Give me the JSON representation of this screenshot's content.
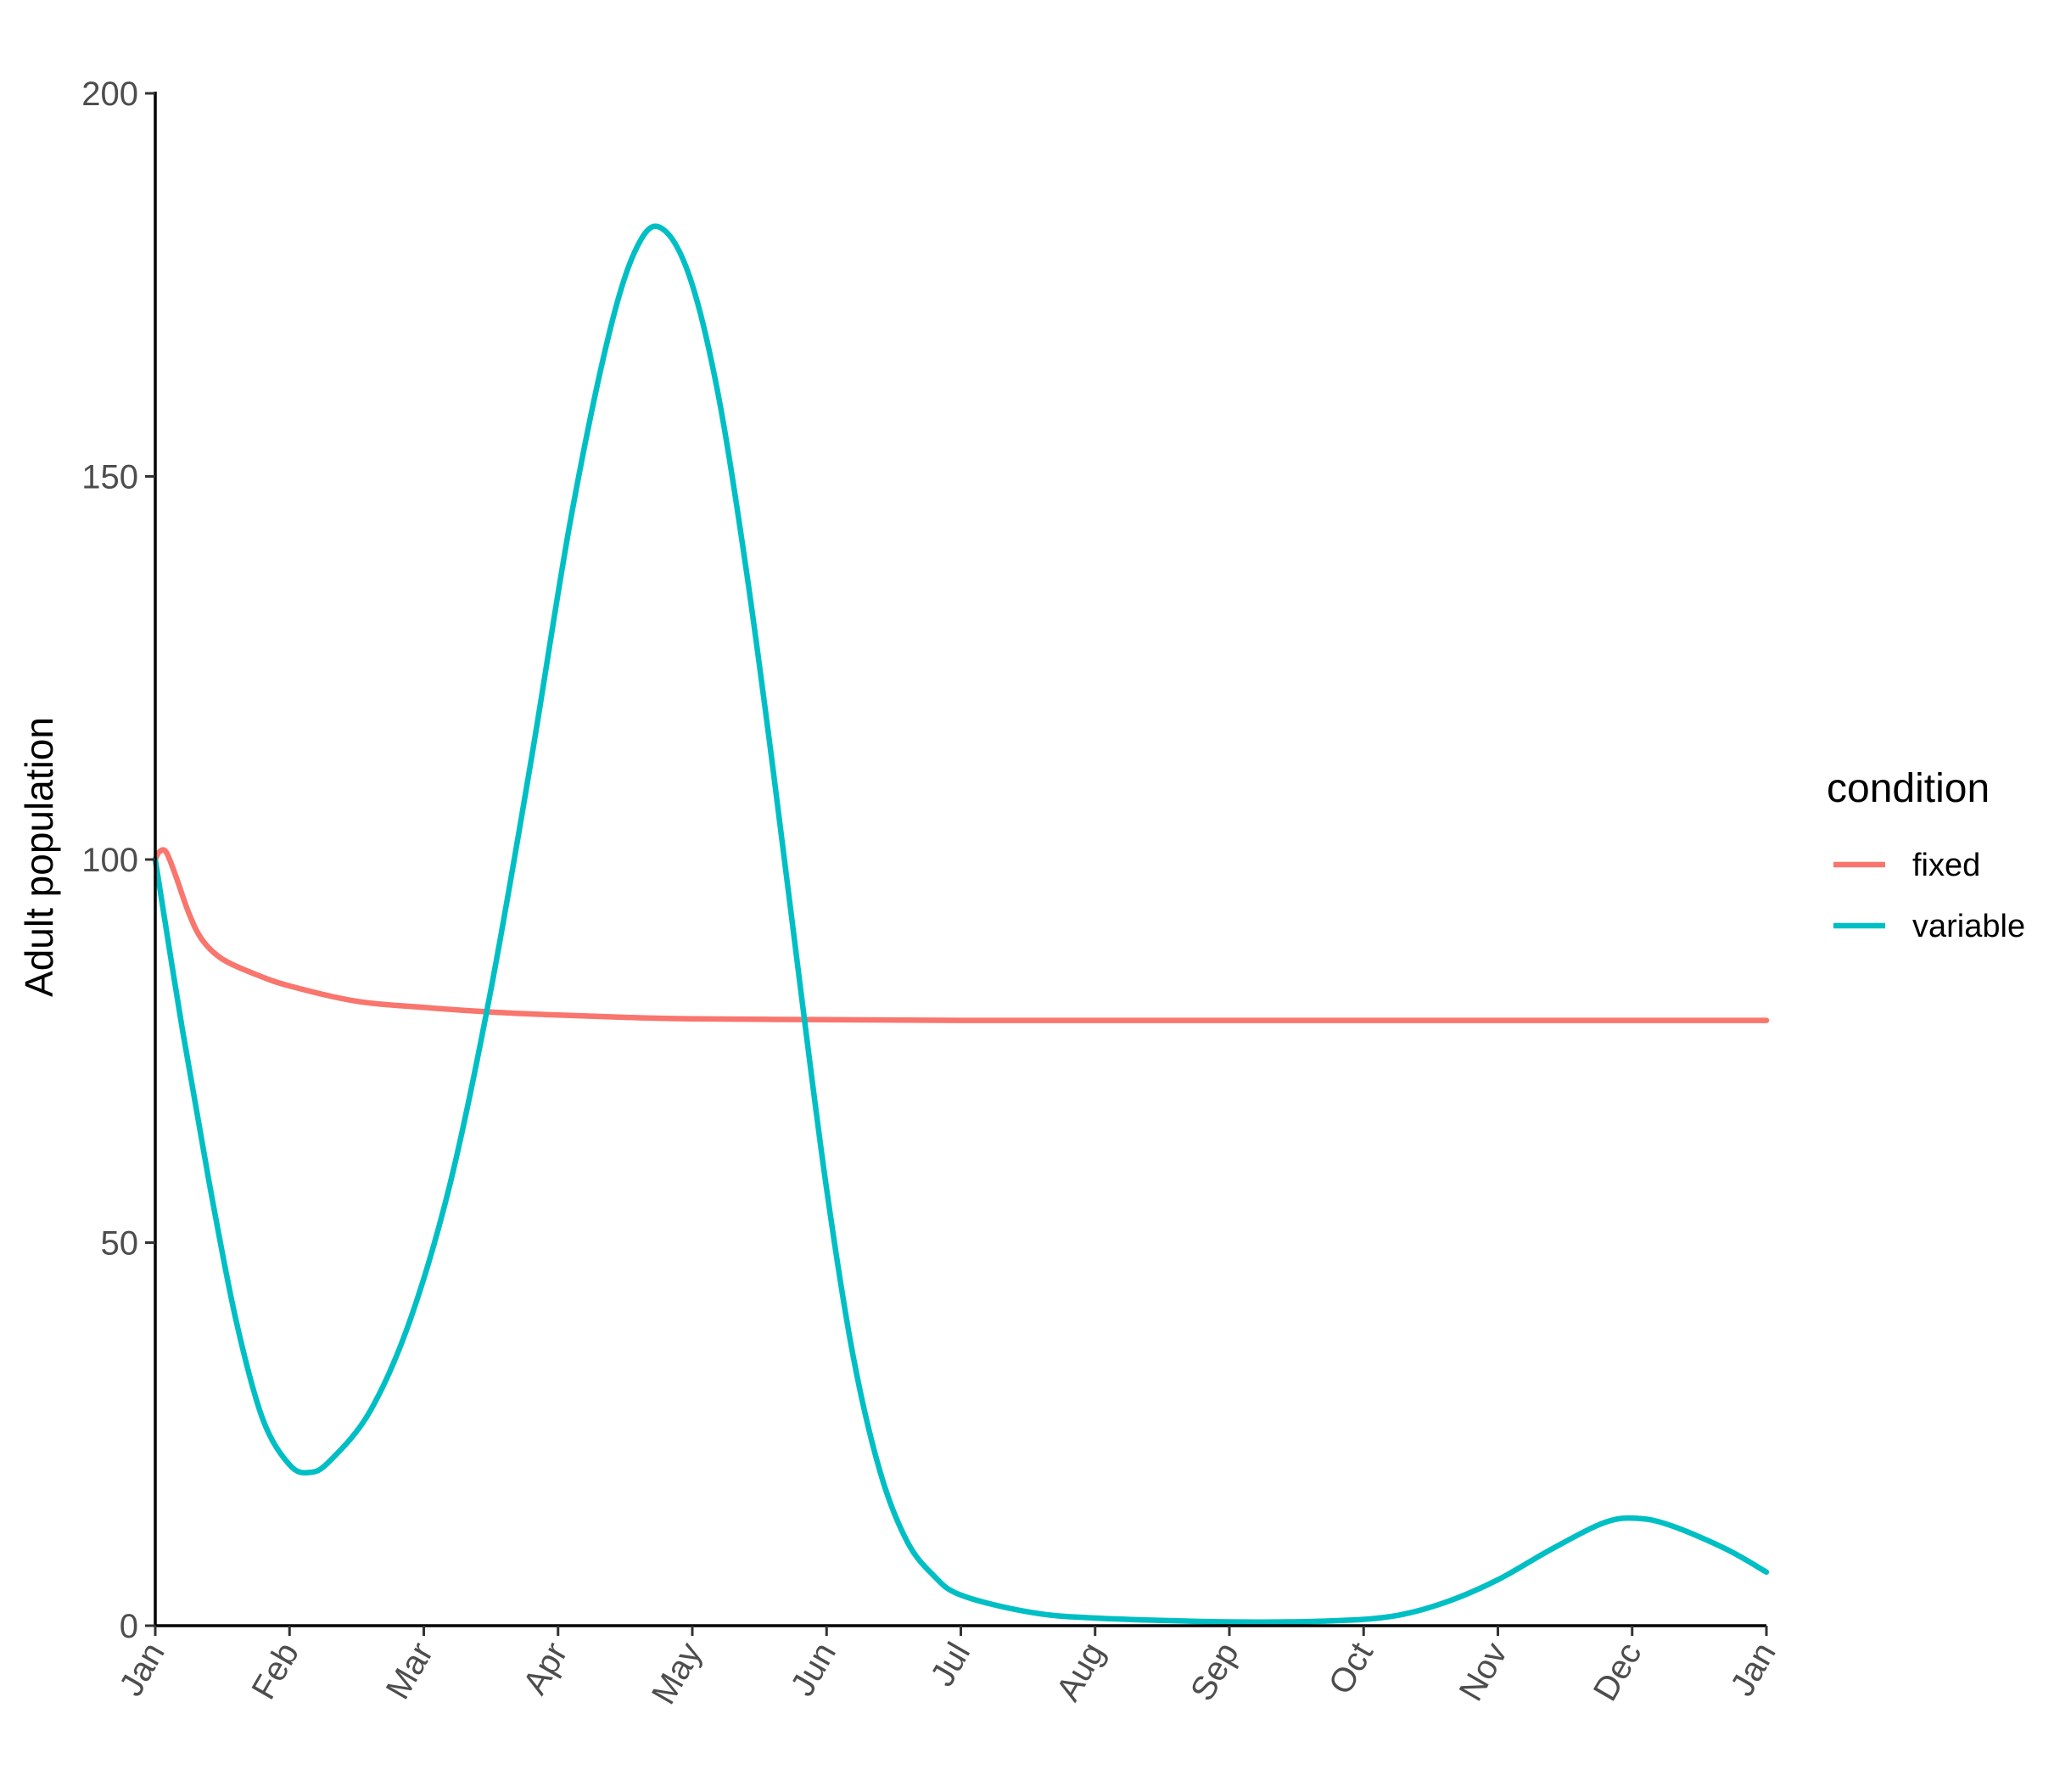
{
  "chart_data": {
    "type": "line",
    "title": "",
    "xlabel": "",
    "ylabel": "Adult population",
    "x_ticks": [
      "Jan",
      "Feb",
      "Mar",
      "Apr",
      "May",
      "Jun",
      "Jul",
      "Aug",
      "Sep",
      "Oct",
      "Nov",
      "Dec",
      "Jan"
    ],
    "xlim": [
      0,
      12
    ],
    "y_ticks": [
      "0",
      "50",
      "100",
      "150",
      "200"
    ],
    "ylim": [
      0,
      200
    ],
    "grid": false,
    "legend": {
      "title": "condition",
      "position": "right"
    },
    "series": [
      {
        "name": "fixed",
        "color": "#F8766D",
        "points": [
          [
            0,
            100
          ],
          [
            0.03,
            101
          ],
          [
            0.08,
            101
          ],
          [
            0.15,
            98
          ],
          [
            0.25,
            93
          ],
          [
            0.35,
            89.5
          ],
          [
            0.5,
            87
          ],
          [
            0.75,
            85
          ],
          [
            1,
            83.5
          ],
          [
            1.5,
            81.5
          ],
          [
            2,
            80.7
          ],
          [
            2.5,
            80.1
          ],
          [
            3,
            79.7
          ],
          [
            3.5,
            79.4
          ],
          [
            4,
            79.2
          ],
          [
            5,
            79.1
          ],
          [
            6,
            79
          ],
          [
            8,
            79
          ],
          [
            10,
            79
          ],
          [
            12,
            79
          ]
        ]
      },
      {
        "name": "variable",
        "color": "#00BFC4",
        "points": [
          [
            0,
            100
          ],
          [
            0.2,
            78
          ],
          [
            0.4,
            58
          ],
          [
            0.6,
            40
          ],
          [
            0.8,
            27
          ],
          [
            1,
            21
          ],
          [
            1.15,
            20
          ],
          [
            1.3,
            21.5
          ],
          [
            1.6,
            28
          ],
          [
            1.9,
            40
          ],
          [
            2.2,
            58
          ],
          [
            2.5,
            83
          ],
          [
            2.8,
            113
          ],
          [
            3.1,
            145
          ],
          [
            3.4,
            170
          ],
          [
            3.62,
            181
          ],
          [
            3.8,
            182
          ],
          [
            4.0,
            175
          ],
          [
            4.2,
            160
          ],
          [
            4.4,
            138
          ],
          [
            4.6,
            112
          ],
          [
            4.8,
            84
          ],
          [
            5.0,
            57
          ],
          [
            5.2,
            35
          ],
          [
            5.4,
            20
          ],
          [
            5.6,
            11
          ],
          [
            5.8,
            6.5
          ],
          [
            6.0,
            4
          ],
          [
            6.5,
            1.8
          ],
          [
            7,
            1
          ],
          [
            8,
            0.5
          ],
          [
            8.7,
            0.6
          ],
          [
            9.2,
            1.2
          ],
          [
            9.6,
            3
          ],
          [
            10,
            6
          ],
          [
            10.4,
            10
          ],
          [
            10.8,
            13.5
          ],
          [
            11.05,
            14
          ],
          [
            11.3,
            13
          ],
          [
            11.7,
            10
          ],
          [
            12,
            7
          ]
        ]
      }
    ]
  }
}
